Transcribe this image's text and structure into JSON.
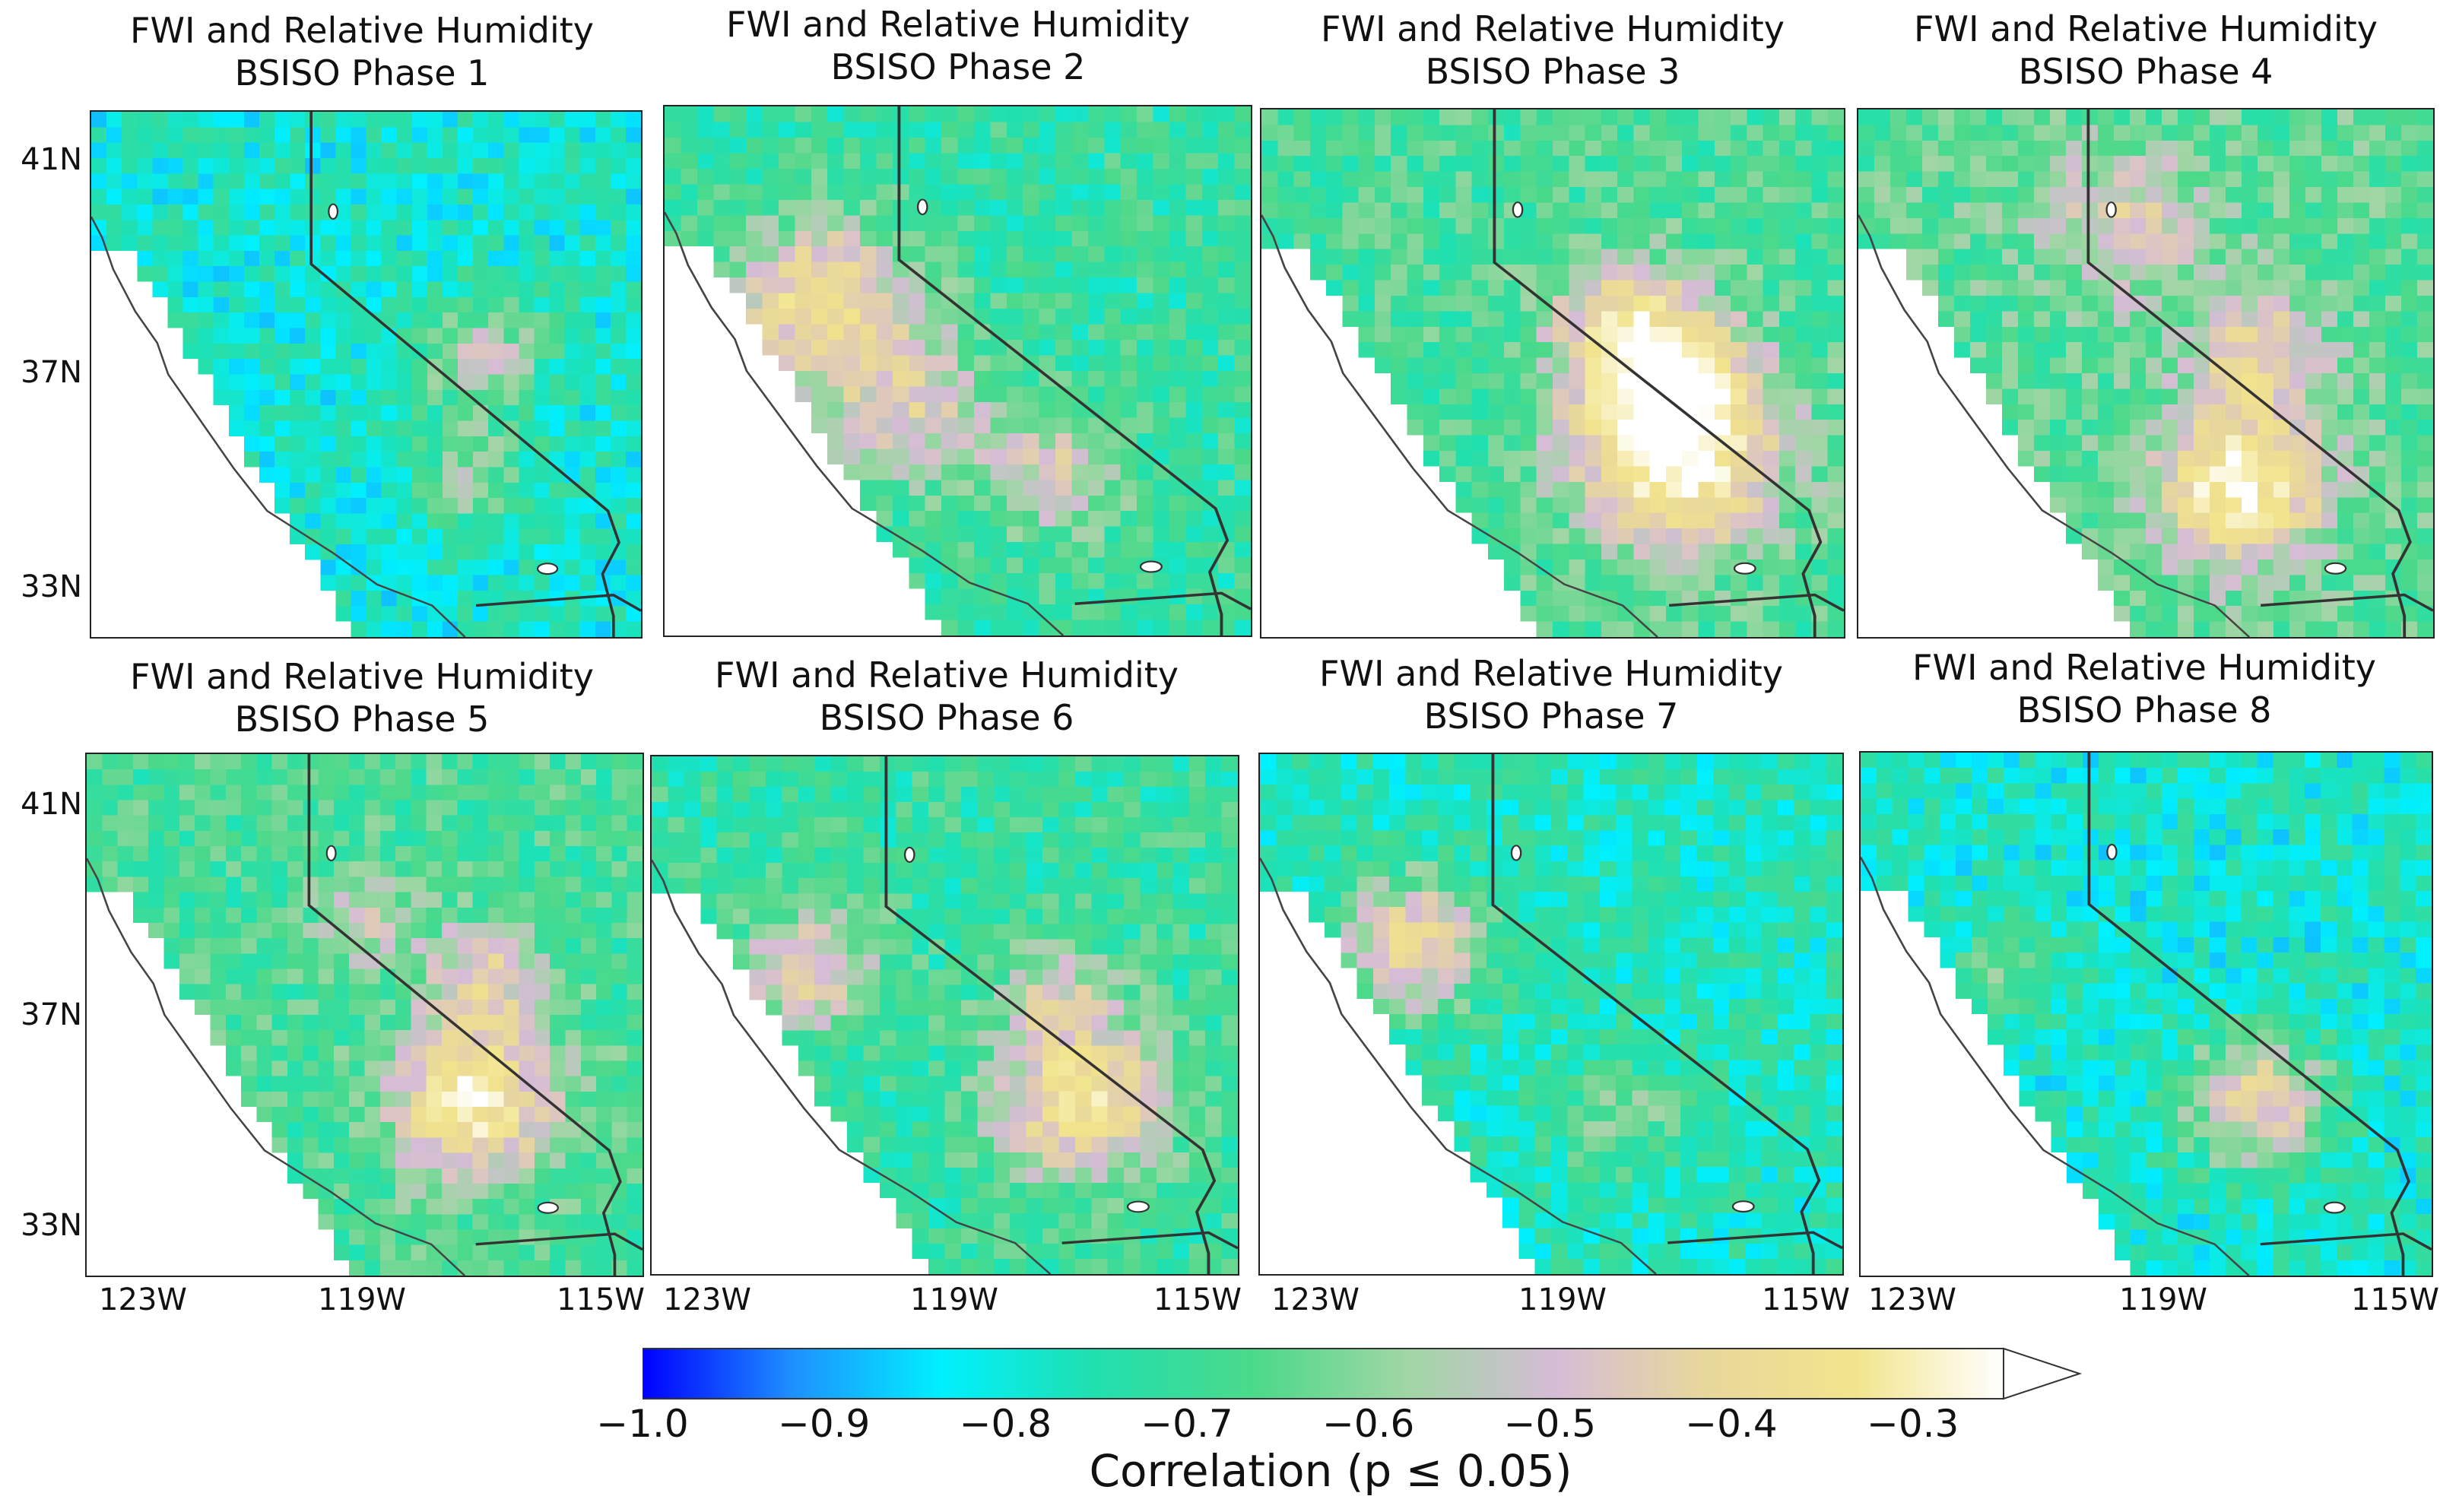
{
  "panels": [
    {
      "title": "FWI and Relative Humidity",
      "subtitle": "BSISO Phase 1"
    },
    {
      "title": "FWI and Relative Humidity",
      "subtitle": "BSISO Phase 2"
    },
    {
      "title": "FWI and Relative Humidity",
      "subtitle": "BSISO Phase 3"
    },
    {
      "title": "FWI and Relative Humidity",
      "subtitle": "BSISO Phase 4"
    },
    {
      "title": "FWI and Relative Humidity",
      "subtitle": "BSISO Phase 5"
    },
    {
      "title": "FWI and Relative Humidity",
      "subtitle": "BSISO Phase 6"
    },
    {
      "title": "FWI and Relative Humidity",
      "subtitle": "BSISO Phase 7"
    },
    {
      "title": "FWI and Relative Humidity",
      "subtitle": "BSISO Phase 8"
    }
  ],
  "lat_labels": [
    "41N",
    "37N",
    "33N"
  ],
  "lon_labels": [
    "123W",
    "119W",
    "115W"
  ],
  "colorbar": {
    "label": "Correlation (p ≤ 0.05)",
    "ticks": [
      "−1.0",
      "−0.9",
      "−0.8",
      "−0.7",
      "−0.6",
      "−0.5",
      "−0.4",
      "−0.3"
    ],
    "colors": [
      "#0000ff",
      "#1e90ff",
      "#00f0ff",
      "#20e0b0",
      "#4cd98a",
      "#9fd6a4",
      "#d6bcd6",
      "#e8d79c",
      "#f2e48c",
      "#ffffff"
    ]
  }
}
